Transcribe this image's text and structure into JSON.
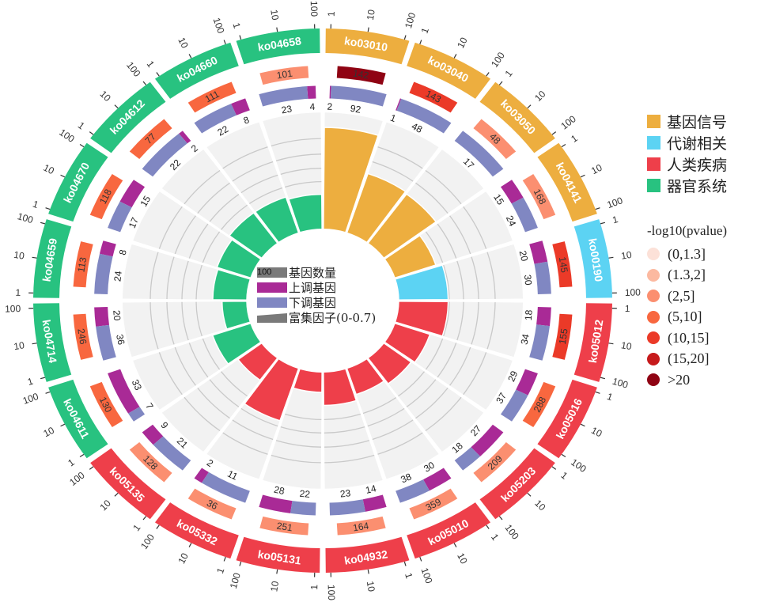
{
  "chart_data": {
    "type": "circos-bar",
    "title": "",
    "categories_legend": [
      {
        "name": "基因信号",
        "color": "#EDAE3F"
      },
      {
        "name": "代谢相关",
        "color": "#5CD3F3"
      },
      {
        "name": "人类疾病",
        "color": "#EE3F4A"
      },
      {
        "name": "器官系统",
        "color": "#28C280"
      }
    ],
    "pvalue_legend": {
      "title": "-log10(pvalue)",
      "bins": [
        {
          "label": "(0,1.3]",
          "color": "#FCE1D8"
        },
        {
          "label": "(1.3,2]",
          "color": "#FCB9A0"
        },
        {
          "label": "(2,5]",
          "color": "#FB8F70"
        },
        {
          "label": "(5,10]",
          "color": "#F8673F"
        },
        {
          "label": "(10,15]",
          "color": "#EB3A28"
        },
        {
          "label": "(15,20]",
          "color": "#C61A1C"
        },
        {
          "label": ">20",
          "color": "#8F0313"
        }
      ]
    },
    "center_legend": [
      {
        "label": "基因数量",
        "swatch_text": "100",
        "color": "#7a7a7a"
      },
      {
        "label": "上调基因",
        "color": "#A92A96"
      },
      {
        "label": "下调基因",
        "color": "#8087C2"
      },
      {
        "label": "富集因子(0-0.7)",
        "color": "#7a7a7a"
      }
    ],
    "axis_ticks": [
      "1",
      "10",
      "100"
    ],
    "rich_factor_range": [
      0,
      0.7
    ],
    "up_color": "#A92A96",
    "down_color": "#8087C2",
    "sectors": [
      {
        "id": "ko03010",
        "category": "基因信号",
        "gene_count": 142,
        "pvalue_bin": 6,
        "up": 2,
        "down": 92,
        "rich_factor": 0.7
      },
      {
        "id": "ko03040",
        "category": "基因信号",
        "gene_count": 143,
        "pvalue_bin": 4,
        "up": 1,
        "down": 48,
        "rich_factor": 0.43
      },
      {
        "id": "ko03050",
        "category": "基因信号",
        "gene_count": 48,
        "pvalue_bin": 2,
        "up": 0,
        "down": 17,
        "rich_factor": 0.42
      },
      {
        "id": "ko04141",
        "category": "基因信号",
        "gene_count": 168,
        "pvalue_bin": 2,
        "up": 15,
        "down": 24,
        "rich_factor": 0.28
      },
      {
        "id": "ko00190",
        "category": "代谢相关",
        "gene_count": 145,
        "pvalue_bin": 4,
        "up": 20,
        "down": 30,
        "rich_factor": 0.32
      },
      {
        "id": "ko05012",
        "category": "人类疾病",
        "gene_count": 155,
        "pvalue_bin": 4,
        "up": 18,
        "down": 34,
        "rich_factor": 0.32
      },
      {
        "id": "ko05016",
        "category": "人类疾病",
        "gene_count": 288,
        "pvalue_bin": 3,
        "up": 29,
        "down": 37,
        "rich_factor": 0.24
      },
      {
        "id": "ko05203",
        "category": "人类疾病",
        "gene_count": 209,
        "pvalue_bin": 2,
        "up": 27,
        "down": 18,
        "rich_factor": 0.22
      },
      {
        "id": "ko05010",
        "category": "人类疾病",
        "gene_count": 359,
        "pvalue_bin": 2,
        "up": 30,
        "down": 38,
        "rich_factor": 0.19
      },
      {
        "id": "ko04932",
        "category": "人类疾病",
        "gene_count": 164,
        "pvalue_bin": 2,
        "up": 14,
        "down": 23,
        "rich_factor": 0.23
      },
      {
        "id": "ko05131",
        "category": "人类疾病",
        "gene_count": 251,
        "pvalue_bin": 2,
        "up": 28,
        "down": 22,
        "rich_factor": 0.14
      },
      {
        "id": "ko05332",
        "category": "人类疾病",
        "gene_count": 36,
        "pvalue_bin": 2,
        "up": 2,
        "down": 11,
        "rich_factor": 0.38
      },
      {
        "id": "ko05135",
        "category": "人类疾病",
        "gene_count": 128,
        "pvalue_bin": 2,
        "up": 9,
        "down": 21,
        "rich_factor": 0.19
      },
      {
        "id": "ko04611",
        "category": "器官系统",
        "gene_count": 130,
        "pvalue_bin": 3,
        "up": 33,
        "down": 7,
        "rich_factor": 0.26
      },
      {
        "id": "ko04714",
        "category": "器官系统",
        "gene_count": 246,
        "pvalue_bin": 3,
        "up": 20,
        "down": 36,
        "rich_factor": 0.16
      },
      {
        "id": "ko04659",
        "category": "器官系统",
        "gene_count": 113,
        "pvalue_bin": 3,
        "up": 8,
        "down": 24,
        "rich_factor": 0.22
      },
      {
        "id": "ko04670",
        "category": "器官系统",
        "gene_count": 118,
        "pvalue_bin": 3,
        "up": 15,
        "down": 17,
        "rich_factor": 0.23
      },
      {
        "id": "ko04612",
        "category": "器官系统",
        "gene_count": 77,
        "pvalue_bin": 3,
        "up": 2,
        "down": 22,
        "rich_factor": 0.26
      },
      {
        "id": "ko04660",
        "category": "器官系统",
        "gene_count": 111,
        "pvalue_bin": 3,
        "up": 8,
        "down": 22,
        "rich_factor": 0.26
      },
      {
        "id": "ko04658",
        "category": "器官系统",
        "gene_count": 101,
        "pvalue_bin": 2,
        "up": 4,
        "down": 23,
        "rich_factor": 0.24
      }
    ]
  }
}
